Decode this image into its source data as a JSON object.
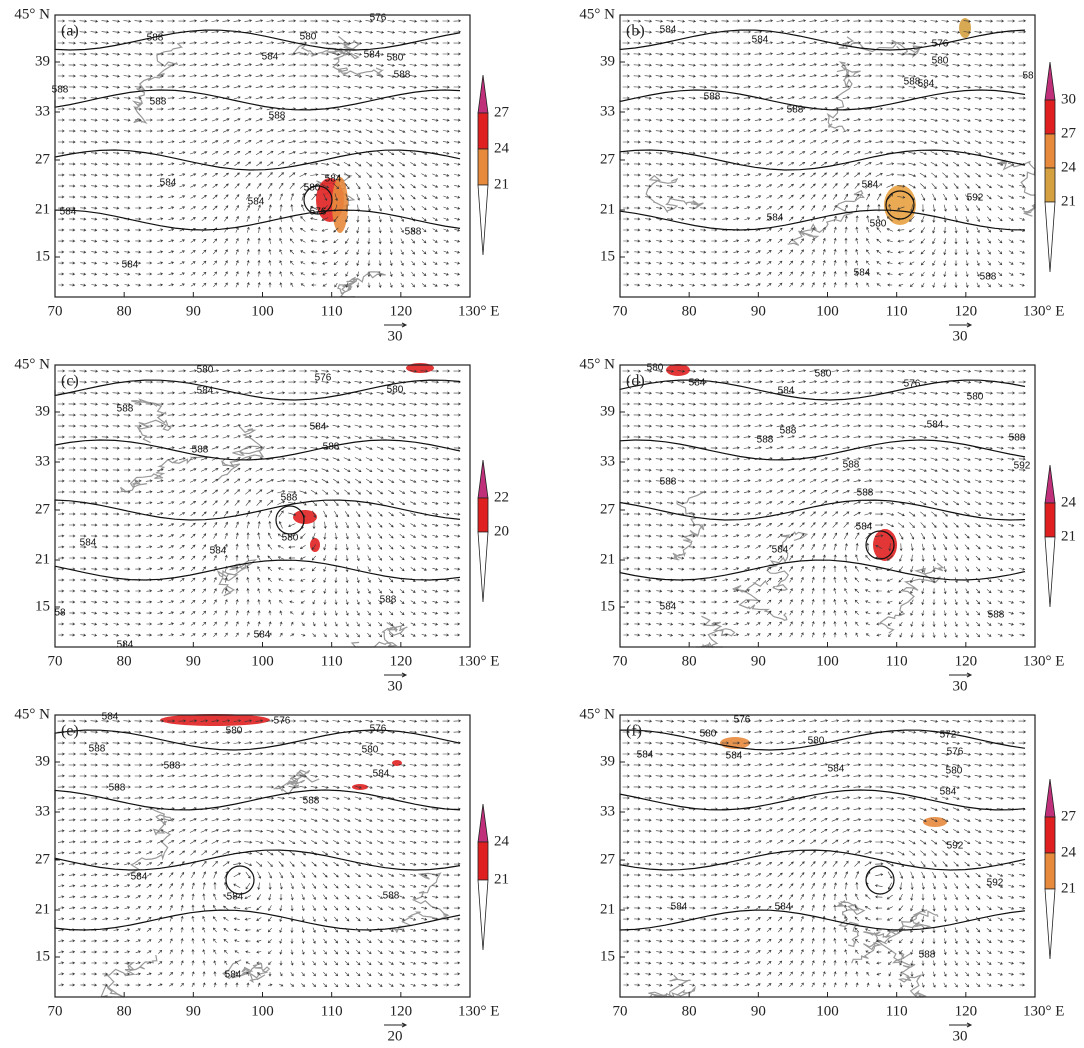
{
  "axes": {
    "y_labels": [
      "45° N",
      "39",
      "33",
      "27",
      "21",
      "15"
    ],
    "x_labels": [
      "70",
      "80",
      "90",
      "100",
      "110",
      "120",
      "130° E"
    ]
  },
  "panels": [
    {
      "label": "(a)",
      "contour_labels": [
        "576",
        "580",
        "580",
        "584",
        "584",
        "588",
        "588",
        "588",
        "588",
        "588",
        "584",
        "584",
        "580",
        "584",
        "576",
        "584",
        "588",
        "584"
      ],
      "colorbar_labels": [
        "27",
        "24",
        "21"
      ],
      "reference_vector": "30"
    },
    {
      "label": "(b)",
      "contour_labels": [
        "584",
        "584",
        "576",
        "580",
        "588",
        "584",
        "58",
        "588",
        "588",
        "584",
        "580",
        "584",
        "592",
        "584",
        "588"
      ],
      "colorbar_labels": [
        "30",
        "27",
        "24",
        "21"
      ],
      "reference_vector": "30"
    },
    {
      "label": "(c)",
      "contour_labels": [
        "580",
        "576",
        "584",
        "580",
        "588",
        "584",
        "588",
        "588",
        "588",
        "584",
        "584",
        "580",
        "588",
        "58",
        "584",
        "584"
      ],
      "colorbar_labels": [
        "22",
        "20"
      ],
      "reference_vector": "30"
    },
    {
      "label": "(d)",
      "contour_labels": [
        "580",
        "584",
        "580",
        "576",
        "584",
        "580",
        "584",
        "588",
        "588",
        "588",
        "588",
        "592",
        "588",
        "588",
        "584",
        "584",
        "584",
        "588"
      ],
      "colorbar_labels": [
        "24",
        "21"
      ],
      "reference_vector": "30"
    },
    {
      "label": "(e)",
      "contour_labels": [
        "584",
        "576",
        "576",
        "580",
        "588",
        "580",
        "588",
        "584",
        "588",
        "588",
        "584",
        "584",
        "588",
        "584"
      ],
      "colorbar_labels": [
        "24",
        "21"
      ],
      "reference_vector": "20"
    },
    {
      "label": "(f)",
      "contour_labels": [
        "576",
        "580",
        "580",
        "572",
        "576",
        "584",
        "584",
        "584",
        "580",
        "584",
        "592",
        "592",
        "584",
        "584",
        "588"
      ],
      "colorbar_labels": [
        "27",
        "24",
        "21"
      ],
      "reference_vector": "30"
    }
  ]
}
